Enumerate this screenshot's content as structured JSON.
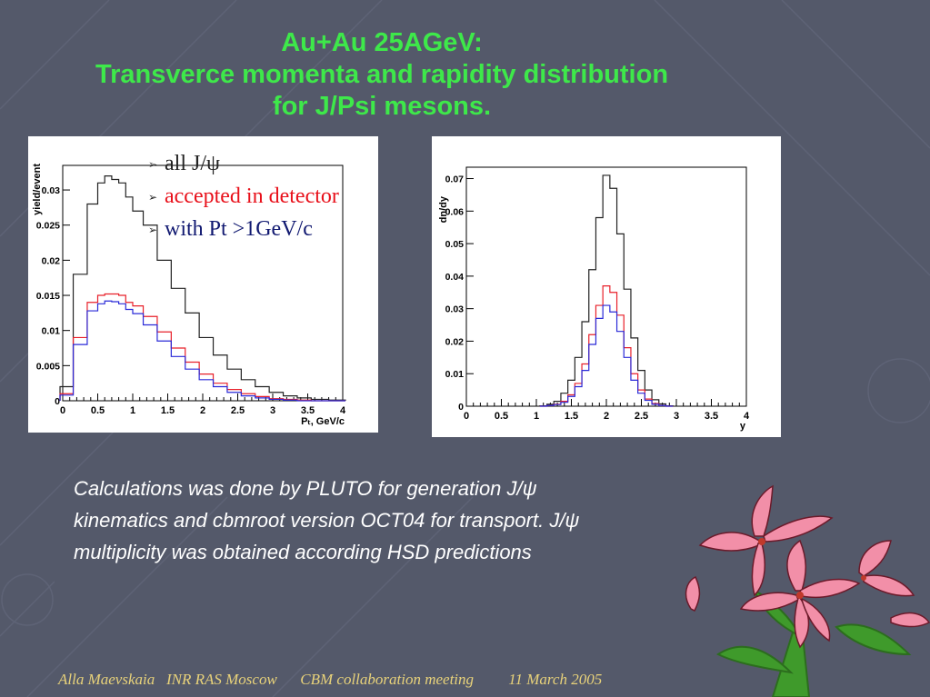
{
  "colors": {
    "background": "#54596a",
    "title": "#3ee84a",
    "series_all": "#222222",
    "series_accepted": "#e8202a",
    "series_pt": "#2a2ad8",
    "legend_all": "#222222",
    "legend_accepted": "#e8101a",
    "legend_pt": "#101870",
    "footer": "#e8d27a"
  },
  "title": {
    "line1": "Au+Au 25AGeV:",
    "line2": "Transverce momenta and rapidity distribution",
    "line3": "for J/Psi mesons."
  },
  "legend": {
    "items": [
      {
        "label": "all J/ψ",
        "color": "#222222"
      },
      {
        "label": "accepted in detector",
        "color": "#e8101a"
      },
      {
        "label": "with Pt >1GeV/c",
        "color": "#101870"
      }
    ]
  },
  "note": {
    "line1": "Calculations was done by PLUTO for generation J/ψ",
    "line2": "kinematics  and cbmroot version OCT04 for transport. J/ψ",
    "line3": "multiplicity was obtained according HSD predictions"
  },
  "footer": {
    "text": "Alla Maevskaia   INR RAS Moscow      CBM collaboration meeting         11 March 2005"
  },
  "chart_data": [
    {
      "type": "line",
      "xlabel": "Pₜ, GeV/c",
      "ylabel": "yield/event",
      "xlim": [
        0,
        4
      ],
      "ylim": [
        0,
        0.0335
      ],
      "xticks": [
        "0",
        "0.5",
        "1",
        "1.5",
        "2",
        "2.5",
        "3",
        "3.5",
        "4"
      ],
      "yticks": [
        "0",
        "0.005",
        "0.01",
        "0.015",
        "0.02",
        "0.025",
        "0.03"
      ],
      "x": [
        0.05,
        0.25,
        0.45,
        0.55,
        0.65,
        0.75,
        0.85,
        0.95,
        1.05,
        1.25,
        1.45,
        1.65,
        1.85,
        2.05,
        2.25,
        2.45,
        2.65,
        2.85,
        3.05,
        3.25,
        3.45,
        3.65,
        3.95
      ],
      "series": [
        {
          "key": "all",
          "values": [
            0.002,
            0.018,
            0.028,
            0.031,
            0.032,
            0.0315,
            0.031,
            0.029,
            0.027,
            0.025,
            0.02,
            0.016,
            0.0125,
            0.009,
            0.0065,
            0.0045,
            0.003,
            0.002,
            0.0012,
            0.0007,
            0.0004,
            0.0002,
            0.0001
          ]
        },
        {
          "key": "accepted",
          "values": [
            0.001,
            0.009,
            0.014,
            0.015,
            0.0152,
            0.0152,
            0.015,
            0.014,
            0.0135,
            0.012,
            0.0098,
            0.0075,
            0.0055,
            0.0038,
            0.0025,
            0.0016,
            0.001,
            0.0006,
            0.0003,
            0.0002,
            0.0001,
            0.0,
            0.0
          ]
        },
        {
          "key": "pt",
          "values": [
            0.0008,
            0.008,
            0.0128,
            0.0138,
            0.0142,
            0.0141,
            0.0138,
            0.013,
            0.0124,
            0.0108,
            0.0085,
            0.0063,
            0.0045,
            0.003,
            0.002,
            0.0012,
            0.0007,
            0.0004,
            0.0002,
            0.0001,
            0.0,
            0.0,
            0.0
          ]
        }
      ]
    },
    {
      "type": "line",
      "xlabel": "y",
      "ylabel": "dn/dy",
      "xlim": [
        0,
        4
      ],
      "ylim": [
        0,
        0.0735
      ],
      "xticks": [
        "0",
        "0.5",
        "1",
        "1.5",
        "2",
        "2.5",
        "3",
        "3.5",
        "4"
      ],
      "yticks": [
        "0",
        "0.01",
        "0.02",
        "0.03",
        "0.04",
        "0.05",
        "0.06",
        "0.07"
      ],
      "x": [
        1.1,
        1.2,
        1.3,
        1.4,
        1.5,
        1.6,
        1.7,
        1.8,
        1.9,
        2.0,
        2.1,
        2.2,
        2.3,
        2.4,
        2.5,
        2.6,
        2.7,
        2.8,
        2.9
      ],
      "series": [
        {
          "key": "all",
          "values": [
            0.0001,
            0.0006,
            0.0015,
            0.004,
            0.008,
            0.015,
            0.026,
            0.042,
            0.058,
            0.071,
            0.067,
            0.053,
            0.036,
            0.021,
            0.011,
            0.005,
            0.002,
            0.0007,
            0.0001
          ]
        },
        {
          "key": "accepted",
          "values": [
            0.0,
            0.0002,
            0.0006,
            0.0015,
            0.0035,
            0.007,
            0.013,
            0.022,
            0.031,
            0.037,
            0.035,
            0.028,
            0.018,
            0.01,
            0.005,
            0.0022,
            0.0008,
            0.0002,
            0.0
          ]
        },
        {
          "key": "pt",
          "values": [
            0.0,
            0.0002,
            0.0005,
            0.0012,
            0.003,
            0.006,
            0.011,
            0.019,
            0.027,
            0.031,
            0.029,
            0.023,
            0.015,
            0.008,
            0.004,
            0.0018,
            0.0006,
            0.0002,
            0.0
          ]
        }
      ]
    }
  ]
}
